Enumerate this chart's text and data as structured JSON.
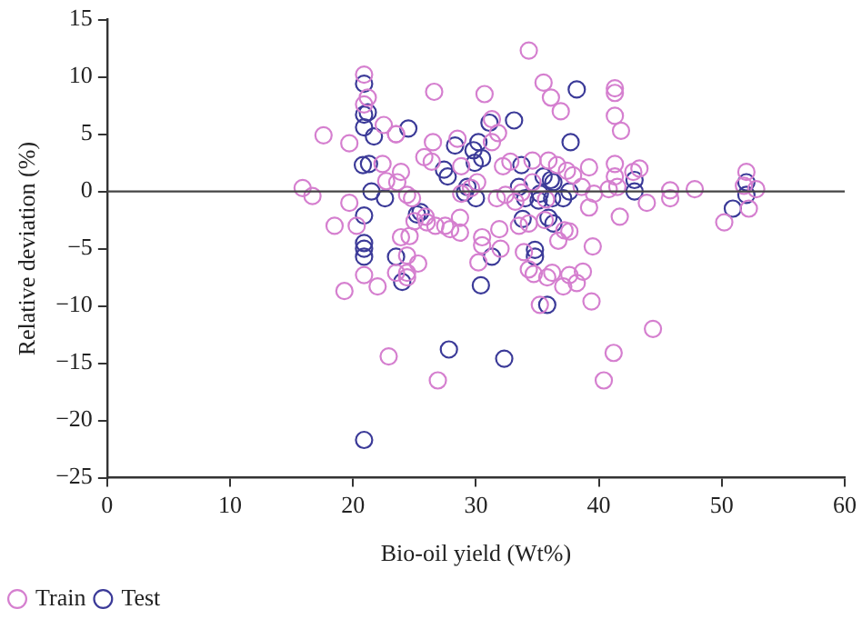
{
  "chart_data": {
    "type": "scatter",
    "xlabel": "Bio-oil yield (Wt%)",
    "ylabel": "Relative deviation (%)",
    "xlim": [
      0,
      60
    ],
    "xticks": [
      0,
      10,
      20,
      30,
      40,
      50,
      60
    ],
    "ylim": [
      -25,
      15
    ],
    "yticks": [
      -25,
      -20,
      -15,
      -10,
      -5,
      0,
      5,
      10,
      15
    ],
    "grid": false,
    "legend": "bottom left",
    "marker": "circle",
    "ref_lines": [
      {
        "axis": "y",
        "value": 0,
        "color": "#444444"
      }
    ],
    "series": [
      {
        "name": "Train",
        "color": "#d57fcf",
        "x": [
          17.6,
          15.9,
          16.7,
          18.5,
          19.3,
          19.7,
          19.7,
          20.9,
          21.2,
          20.9,
          20.3,
          20.9,
          22,
          22.4,
          22.7,
          23.5,
          23.9,
          24.4,
          25,
          23.9,
          24.4,
          25.3,
          23.5,
          24.4,
          22.5,
          22.9,
          34.3,
          26.6,
          30.7,
          35.5,
          36.1,
          41.3,
          41.3,
          41.3,
          41.8,
          36.9,
          31.3,
          26.5,
          23.5,
          28.5,
          31.3,
          31.8,
          34.6,
          35.9,
          39.2,
          41.3,
          41.3,
          42.8,
          43.3,
          52,
          51.8,
          52.8,
          52.2,
          50.2,
          47.8,
          45.8,
          45.8,
          43.9,
          41.7,
          39.2,
          39.5,
          37.2,
          35.6,
          34.3,
          33.5,
          31.9,
          30.5,
          28.7,
          27.9,
          26,
          24.6,
          30.2,
          34.7,
          35.8,
          37.6,
          37.1,
          35.2,
          34.3,
          36.2,
          38.7,
          38.2,
          39.4,
          44.4,
          41.2,
          40.4,
          26.9,
          24.4,
          28.8,
          29.6,
          31.7,
          32.4,
          33.2,
          33.7,
          35.7,
          38.6,
          39.6,
          40.8,
          41.5,
          26.4,
          25.8,
          28.8,
          32.2,
          32.8,
          36.6,
          37.4,
          37.9,
          34.6,
          30.1,
          23.6,
          24.8,
          26.7,
          25.9,
          28.7,
          27.5,
          30.5,
          32,
          33.9,
          36.7,
          37.6
        ],
        "values": [
          4.9,
          0.3,
          -0.4,
          -3,
          -8.7,
          4.2,
          -1,
          10.2,
          8.2,
          7.6,
          -3,
          -7.3,
          -8.3,
          2.4,
          0.9,
          5,
          1.7,
          -0.3,
          -2.6,
          -4,
          -5.6,
          -6.3,
          -7.1,
          -7.5,
          5.8,
          -14.4,
          12.3,
          8.7,
          8.5,
          9.5,
          8.2,
          9,
          8.6,
          6.6,
          5.3,
          7,
          6.3,
          4.3,
          5,
          4.6,
          4.3,
          5.1,
          2.7,
          2.7,
          2.1,
          2.4,
          1.3,
          1.7,
          2,
          1.7,
          0.5,
          0.2,
          -1.5,
          -2.7,
          0.2,
          0.1,
          -0.6,
          -1,
          -2.2,
          -1.4,
          -4.8,
          -3.4,
          -2.5,
          -2.8,
          -3,
          -3.3,
          -4,
          -3.6,
          -3.3,
          -2.7,
          -3.9,
          -6.2,
          -7.2,
          -7.5,
          -7.3,
          -8.3,
          -9.9,
          -6.8,
          -7.1,
          -7,
          -8,
          -9.6,
          -12,
          -14.1,
          -16.5,
          -16.5,
          -7.1,
          -0.2,
          0.3,
          -0.6,
          -0.3,
          -0.9,
          -0.1,
          -0.7,
          0.4,
          -0.2,
          0.2,
          0.4,
          2.6,
          3,
          2.2,
          2.2,
          2.6,
          2.3,
          1.8,
          1.4,
          0.8,
          0.8,
          0.8,
          -0.6,
          -3,
          -2.2,
          -2.3,
          -3,
          -4.7,
          -5,
          -5.3,
          -4.3,
          -3.5
        ]
      },
      {
        "name": "Test",
        "color": "#3b3a98",
        "x": [
          20.9,
          20.9,
          21.2,
          20.9,
          21.7,
          20.8,
          21.3,
          21.5,
          22.6,
          20.9,
          20.9,
          20.9,
          20.9,
          24.5,
          23.5,
          24,
          25.5,
          20.9,
          30.4,
          35.8,
          27.8,
          32.3,
          38.2,
          33.1,
          31.1,
          28.3,
          30.2,
          29.8,
          30.5,
          29.9,
          37.7,
          33.7,
          27.4,
          27.7,
          29.3,
          29.1,
          30,
          33.5,
          34,
          35.2,
          35.5,
          36.1,
          36.3,
          35.1,
          36.2,
          37.1,
          37.6,
          42.9,
          42.9,
          25.2,
          33.8,
          35.9,
          36.3,
          34.8,
          34.8,
          31.3,
          52,
          52,
          50.9
        ],
        "values": [
          9.4,
          6.7,
          6.9,
          5.6,
          4.8,
          2.3,
          2.4,
          0,
          -0.6,
          -2.1,
          -4.5,
          -5,
          -5.7,
          5.5,
          -5.7,
          -7.9,
          -1.8,
          -21.7,
          -8.2,
          -9.9,
          -13.8,
          -14.6,
          8.9,
          6.2,
          6,
          4,
          4.3,
          3.6,
          2.9,
          2.5,
          4.3,
          2.3,
          1.9,
          1.3,
          0.4,
          -0.1,
          -0.6,
          0.4,
          -0.6,
          -0.2,
          1.3,
          1,
          0.8,
          -0.8,
          -0.6,
          -0.6,
          0,
          1,
          0,
          -2,
          -2.4,
          -2.3,
          -2.8,
          -5.1,
          -5.7,
          -5.7,
          0.8,
          -0.3,
          -1.5
        ]
      }
    ]
  }
}
